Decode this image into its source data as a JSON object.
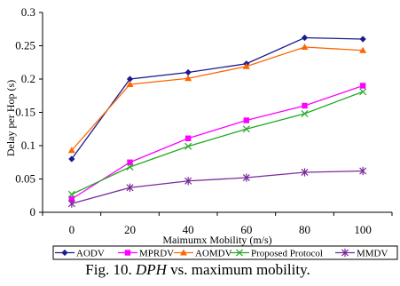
{
  "chart_data": {
    "type": "line",
    "xlabel": "Maimumx Mobility (m/s)",
    "ylabel": "Delay per Hop (s)",
    "categories": [
      "0",
      "20",
      "40",
      "60",
      "80",
      "100"
    ],
    "ylim": [
      0,
      0.3
    ],
    "yticks": [
      "0",
      "0.05",
      "0.1",
      "0.15",
      "0.2",
      "0.25",
      "0.3"
    ],
    "grid": false,
    "legend_position": "bottom",
    "series": [
      {
        "name": "AODV",
        "color": "#1a1a8c",
        "marker": "diamond",
        "values": [
          0.08,
          0.2,
          0.21,
          0.223,
          0.262,
          0.26
        ]
      },
      {
        "name": "MPRDV",
        "color": "#ff00ff",
        "marker": "square",
        "values": [
          0.02,
          0.075,
          0.111,
          0.138,
          0.16,
          0.19
        ]
      },
      {
        "name": "AOMDV",
        "color": "#ff6600",
        "marker": "triangle",
        "values": [
          0.093,
          0.192,
          0.201,
          0.219,
          0.248,
          0.243
        ]
      },
      {
        "name": "Proposed Protocol",
        "color": "#22aa22",
        "marker": "x",
        "values": [
          0.027,
          0.068,
          0.099,
          0.125,
          0.148,
          0.181
        ]
      },
      {
        "name": "MMDV",
        "color": "#7a2a9a",
        "marker": "star",
        "values": [
          0.013,
          0.037,
          0.047,
          0.052,
          0.06,
          0.062
        ]
      }
    ]
  },
  "caption": {
    "prefix": "Fig. 10. ",
    "italic": "DPH",
    "suffix": " vs. maximum mobility."
  }
}
